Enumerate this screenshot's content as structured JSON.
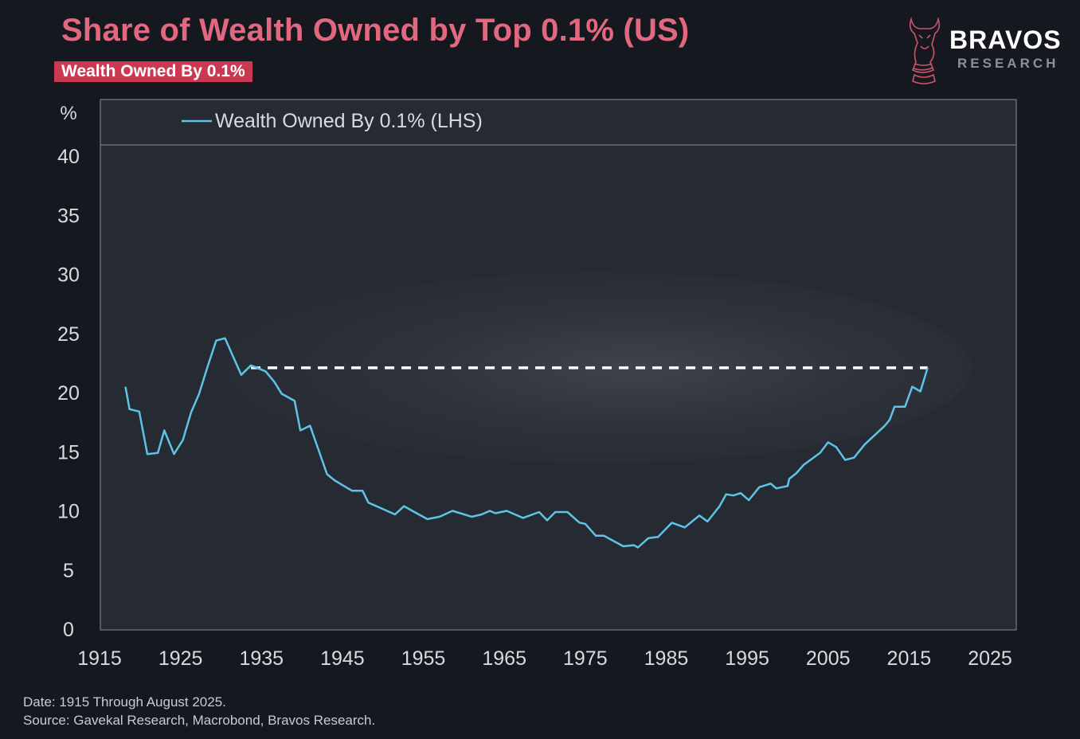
{
  "header": {
    "title": "Share of Wealth Owned by Top 0.1% (US)",
    "badge": "Wealth Owned By 0.1%",
    "logo_text": "BRAVOS",
    "logo_subtext": "RESEARCH"
  },
  "footer": {
    "date_note": "Date: 1915 Through August 2025.",
    "source_note": "Source: Gavekal Research, Macrobond, Bravos Research."
  },
  "colors": {
    "title": "#e2687f",
    "badge": "#c93a52",
    "series": "#5ec4e6",
    "reference_line": "#ffffff",
    "background": "#15181f",
    "plot_background": "#262a33"
  },
  "chart_data": {
    "type": "line",
    "ylabel": "%",
    "xlim": [
      1915,
      2025
    ],
    "ylim": [
      0,
      40
    ],
    "x_ticks": [
      "1915",
      "1925",
      "1935",
      "1945",
      "1955",
      "1965",
      "1975",
      "1985",
      "1995",
      "2005",
      "2015",
      "2025"
    ],
    "y_ticks": [
      "0",
      "5",
      "10",
      "15",
      "20",
      "25",
      "30",
      "35",
      "40"
    ],
    "grid": false,
    "legend_position": "top-left",
    "series": [
      {
        "name": "Wealth Owned By 0.1% (LHS)",
        "x": [
          1918.2,
          1918.7,
          1919.9,
          1920.9,
          1922.2,
          1923.0,
          1924.2,
          1925.3,
          1926.3,
          1927.3,
          1928.3,
          1929.4,
          1930.5,
          1932.5,
          1933.7,
          1935.5,
          1936.6,
          1937.5,
          1939.1,
          1939.8,
          1941.0,
          1943.1,
          1944.0,
          1945.2,
          1946.2,
          1947.5,
          1948.2,
          1951.5,
          1952.6,
          1953.9,
          1955.5,
          1957.0,
          1958.6,
          1961.0,
          1962.2,
          1963.2,
          1963.9,
          1965.3,
          1967.3,
          1969.3,
          1970.3,
          1971.3,
          1972.8,
          1974.3,
          1975.0,
          1976.3,
          1977.3,
          1979.7,
          1981.0,
          1981.5,
          1982.8,
          1984.0,
          1985.7,
          1987.3,
          1989.1,
          1990.1,
          1991.6,
          1992.4,
          1993.3,
          1994.2,
          1995.2,
          1996.5,
          1997.9,
          1998.6,
          2000.0,
          2000.2,
          2001.1,
          2002.0,
          2004.0,
          2005.0,
          2006.0,
          2007.1,
          2008.2,
          2009.5,
          2012.0,
          2012.6,
          2013.2,
          2014.5,
          2015.4,
          2016.4,
          2017.3
        ],
        "y": [
          20.5,
          18.6,
          18.4,
          14.8,
          14.9,
          16.8,
          14.8,
          16.0,
          18.3,
          19.9,
          22.1,
          24.4,
          24.6,
          21.5,
          22.3,
          21.8,
          20.9,
          19.9,
          19.3,
          16.8,
          17.2,
          13.1,
          12.6,
          12.1,
          11.7,
          11.7,
          10.7,
          9.7,
          10.4,
          9.9,
          9.3,
          9.5,
          10.0,
          9.5,
          9.7,
          10.0,
          9.8,
          10.0,
          9.4,
          9.9,
          9.2,
          9.9,
          9.9,
          9.0,
          8.9,
          7.9,
          7.9,
          7.0,
          7.1,
          6.9,
          7.7,
          7.8,
          9.0,
          8.6,
          9.6,
          9.1,
          10.4,
          11.4,
          11.3,
          11.5,
          10.9,
          12.0,
          12.3,
          11.9,
          12.1,
          12.7,
          13.2,
          13.9,
          14.9,
          15.8,
          15.4,
          14.3,
          14.5,
          15.6,
          17.2,
          17.7,
          18.8,
          18.8,
          20.5,
          20.1,
          22.1
        ]
      }
    ],
    "reference_line": {
      "style": "dashed",
      "y": 22.1,
      "x": [
        1933.7,
        2017.3
      ]
    }
  }
}
